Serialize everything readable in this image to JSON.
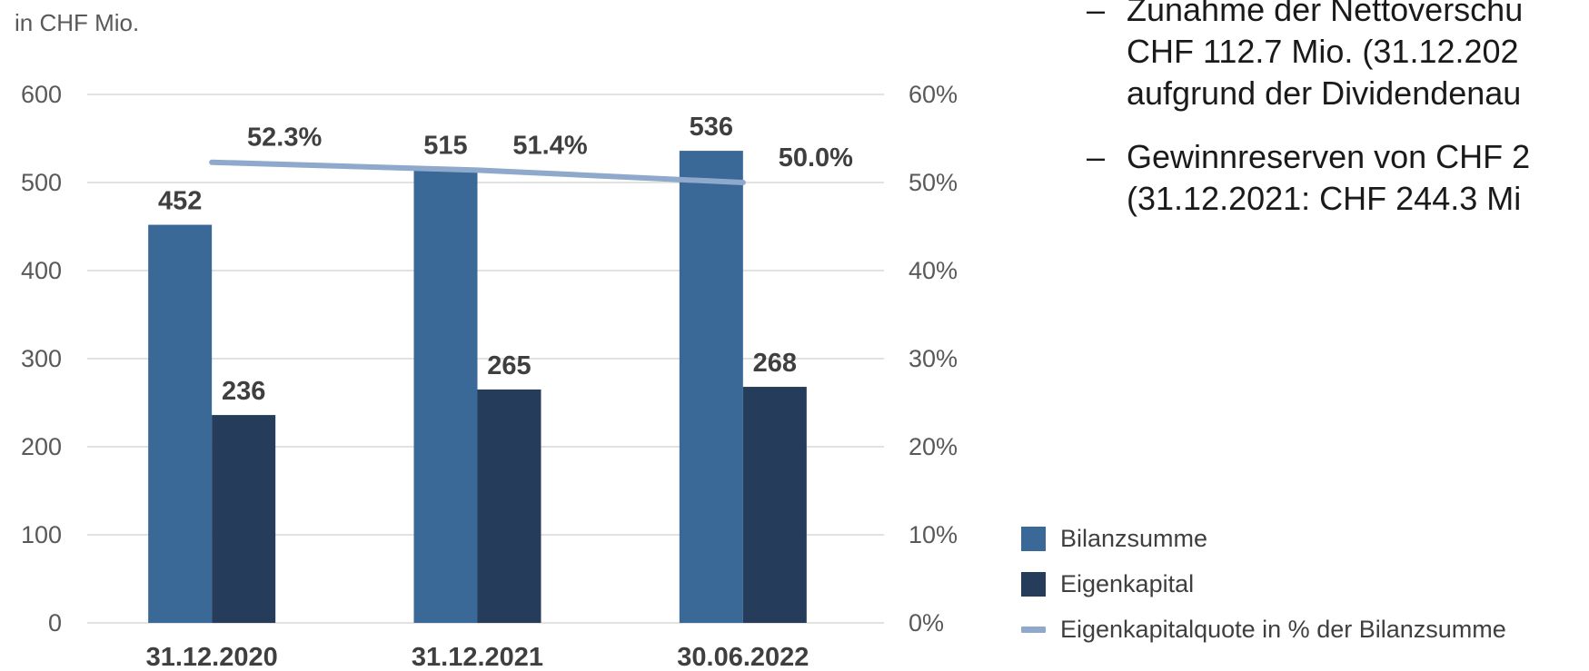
{
  "unit_label": "in CHF Mio.",
  "bullets": [
    {
      "dash": "–",
      "lines": [
        "Zunahme der Nettoverschu",
        "CHF 112.7 Mio. (31.12.202",
        "aufgrund der Dividendenau"
      ]
    },
    {
      "dash": "–",
      "lines": [
        "Gewinnreserven von CHF 2",
        "(31.12.2021: CHF 244.3 Mi"
      ]
    }
  ],
  "chart_data": {
    "type": "bar",
    "categories": [
      "31.12.2020",
      "31.12.2021",
      "30.06.2022"
    ],
    "series": [
      {
        "name": "Bilanzsumme",
        "type": "bar",
        "axis": "left",
        "color": "#3a6897",
        "values": [
          452,
          515,
          536
        ],
        "labels": [
          "452",
          "515",
          "536"
        ]
      },
      {
        "name": "Eigenkapital",
        "type": "bar",
        "axis": "left",
        "color": "#253d5a",
        "values": [
          236,
          265,
          268
        ],
        "labels": [
          "236",
          "265",
          "268"
        ]
      },
      {
        "name": "Eigenkapitalquote in % der Bilanzsumme",
        "type": "line",
        "axis": "right",
        "color": "#8ea9cb",
        "values": [
          52.3,
          51.4,
          50.0
        ],
        "labels": [
          "52.3%",
          "51.4%",
          "50.0%"
        ]
      }
    ],
    "ylim": [
      0,
      600
    ],
    "yticks": [
      "0",
      "100",
      "200",
      "300",
      "400",
      "500",
      "600"
    ],
    "y2lim": [
      0,
      60
    ],
    "y2ticks": [
      "0%",
      "10%",
      "20%",
      "30%",
      "40%",
      "50%",
      "60%"
    ],
    "grid": true,
    "legend_position": "right-bottom"
  }
}
